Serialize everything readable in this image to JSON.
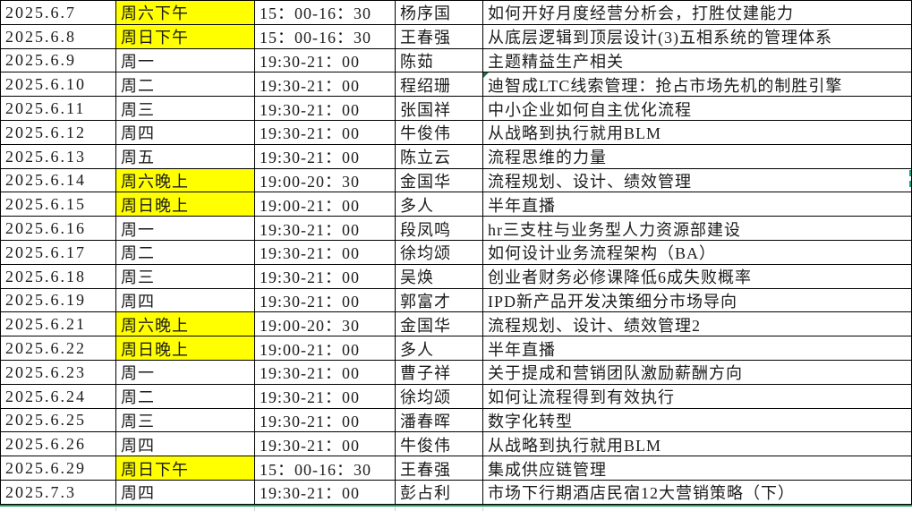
{
  "table": {
    "columns": [
      "date",
      "day",
      "time",
      "speaker",
      "topic"
    ],
    "rows": [
      {
        "date": "2025.6.7",
        "day": "周六下午",
        "time": "15：00-16：30",
        "speaker": "杨序国",
        "topic": "如何开好月度经营分析会，打胜仗建能力",
        "day_highlight": true
      },
      {
        "date": "2025.6.8",
        "day": "周日下午",
        "time": "15：00-16：30",
        "speaker": "王春强",
        "topic": "从底层逻辑到顶层设计(3)五相系统的管理体系",
        "day_highlight": true
      },
      {
        "date": "2025.6.9",
        "day": "周一",
        "time": "19:30-21：00",
        "speaker": "陈茹",
        "topic": "主题精益生产相关",
        "day_highlight": false
      },
      {
        "date": "2025.6.10",
        "day": "周二",
        "time": "19:30-21：00",
        "speaker": "程绍珊",
        "topic": "迪智成LTC线索管理：抢占市场先机的制胜引擎",
        "day_highlight": false
      },
      {
        "date": "2025.6.11",
        "day": "周三",
        "time": "19:30-21：00",
        "speaker": "张国祥",
        "topic": "中小企业如何自主优化流程",
        "day_highlight": false
      },
      {
        "date": "2025.6.12",
        "day": "周四",
        "time": "19:30-21：00",
        "speaker": "牛俊伟",
        "topic": "从战略到执行就用BLM",
        "day_highlight": false
      },
      {
        "date": "2025.6.13",
        "day": "周五",
        "time": "19:30-21：00",
        "speaker": "陈立云",
        "topic": "流程思维的力量",
        "day_highlight": false
      },
      {
        "date": "2025.6.14",
        "day": "周六晚上",
        "time": "19:00-20：30",
        "speaker": "金国华",
        "topic": "流程规划、设计、绩效管理",
        "day_highlight": true
      },
      {
        "date": "2025.6.15",
        "day": "周日晚上",
        "time": "19:00-21：00",
        "speaker": "多人",
        "topic": "半年直播",
        "day_highlight": true
      },
      {
        "date": "2025.6.16",
        "day": "周一",
        "time": "19:30-21：00",
        "speaker": "段凤鸣",
        "topic": "hr三支柱与业务型人力资源部建设",
        "day_highlight": false
      },
      {
        "date": "2025.6.17",
        "day": "周二",
        "time": "19:30-21：00",
        "speaker": "徐均颂",
        "topic": "如何设计业务流程架构（BA）",
        "day_highlight": false
      },
      {
        "date": "2025.6.18",
        "day": "周三",
        "time": "19:30-21：00",
        "speaker": "吴焕",
        "topic": "创业者财务必修课降低6成失败概率",
        "day_highlight": false
      },
      {
        "date": "2025.6.19",
        "day": "周四",
        "time": "19:30-21：00",
        "speaker": "郭富才",
        "topic": "IPD新产品开发决策细分市场导向",
        "day_highlight": false
      },
      {
        "date": "2025.6.21",
        "day": "周六晚上",
        "time": "19:00-20：30",
        "speaker": "金国华",
        "topic": "流程规划、设计、绩效管理2",
        "day_highlight": true
      },
      {
        "date": "2025.6.22",
        "day": "周日晚上",
        "time": "19:00-21：00",
        "speaker": "多人",
        "topic": "半年直播",
        "day_highlight": true
      },
      {
        "date": "2025.6.23",
        "day": "周一",
        "time": "19:30-21：00",
        "speaker": "曹子祥",
        "topic": "关于提成和营销团队激励薪酬方向",
        "day_highlight": false
      },
      {
        "date": "2025.6.24",
        "day": "周二",
        "time": "19:30-21：00",
        "speaker": "徐均颂",
        "topic": "如何让流程得到有效执行",
        "day_highlight": false
      },
      {
        "date": "2025.6.25",
        "day": "周三",
        "time": "19:30-21：00",
        "speaker": "潘春晖",
        "topic": "数字化转型",
        "day_highlight": false
      },
      {
        "date": "2025.6.26",
        "day": "周四",
        "time": "19:30-21：00",
        "speaker": "牛俊伟",
        "topic": "从战略到执行就用BLM",
        "day_highlight": false
      },
      {
        "date": "2025.6.29",
        "day": "周日下午",
        "time": "15：00-16：30",
        "speaker": "王春强",
        "topic": "集成供应链管理",
        "day_highlight": true
      },
      {
        "date": "2025.7.3",
        "day": "周四",
        "time": "19:30-21：00",
        "speaker": "彭占利",
        "topic": "市场下行期酒店民宿12大营销策略（下）",
        "day_highlight": false
      }
    ]
  },
  "markers": {
    "comment_indicator_row": 3,
    "remote_selection_row": 7
  },
  "colors": {
    "day_highlight": "#ffff00",
    "range_bottom_line": "#189a5a",
    "remote_selection": "#16a07f",
    "comment_indicator": "#1e7145"
  }
}
